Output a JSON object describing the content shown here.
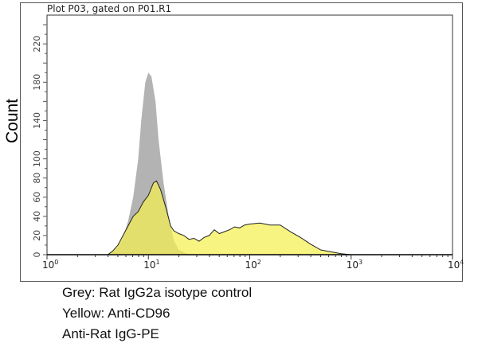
{
  "chart_data": {
    "type": "area",
    "title": "Plot P03, gated on P01.R1",
    "ylabel": "Count",
    "xlabel": "",
    "xscale": "log",
    "xlim_log10": [
      0,
      4
    ],
    "ylim": [
      0,
      250
    ],
    "xticks": [
      {
        "base": "10",
        "exp": "0",
        "v": 0
      },
      {
        "base": "10",
        "exp": "1",
        "v": 1
      },
      {
        "base": "10",
        "exp": "2",
        "v": 2
      },
      {
        "base": "10",
        "exp": "3",
        "v": 3
      },
      {
        "base": "10",
        "exp": "4",
        "v": 4
      }
    ],
    "yticks": [
      0,
      20,
      40,
      60,
      80,
      100,
      140,
      180,
      220
    ],
    "series": [
      {
        "name": "Rat IgG2a isotype control",
        "color": "#b3b3b3",
        "outline": false,
        "points_log10x": [
          [
            0.6,
            0
          ],
          [
            0.65,
            3
          ],
          [
            0.7,
            8
          ],
          [
            0.75,
            18
          ],
          [
            0.8,
            35
          ],
          [
            0.85,
            60
          ],
          [
            0.9,
            100
          ],
          [
            0.93,
            140
          ],
          [
            0.97,
            180
          ],
          [
            1.0,
            190
          ],
          [
            1.03,
            186
          ],
          [
            1.07,
            160
          ],
          [
            1.1,
            120
          ],
          [
            1.15,
            75
          ],
          [
            1.2,
            40
          ],
          [
            1.25,
            15
          ],
          [
            1.3,
            5
          ],
          [
            1.38,
            1
          ],
          [
            1.45,
            0
          ]
        ]
      },
      {
        "name": "Anti-CD96",
        "color": "#f5f050",
        "outline": true,
        "points_log10x": [
          [
            0.6,
            0
          ],
          [
            0.65,
            4
          ],
          [
            0.7,
            10
          ],
          [
            0.75,
            20
          ],
          [
            0.8,
            30
          ],
          [
            0.85,
            40
          ],
          [
            0.9,
            45
          ],
          [
            0.95,
            55
          ],
          [
            1.0,
            62
          ],
          [
            1.05,
            75
          ],
          [
            1.08,
            77
          ],
          [
            1.12,
            68
          ],
          [
            1.17,
            50
          ],
          [
            1.22,
            30
          ],
          [
            1.25,
            25
          ],
          [
            1.3,
            22
          ],
          [
            1.35,
            20
          ],
          [
            1.4,
            16
          ],
          [
            1.45,
            17
          ],
          [
            1.5,
            14
          ],
          [
            1.55,
            18
          ],
          [
            1.6,
            20
          ],
          [
            1.65,
            26
          ],
          [
            1.7,
            22
          ],
          [
            1.75,
            24
          ],
          [
            1.8,
            26
          ],
          [
            1.85,
            29
          ],
          [
            1.9,
            28
          ],
          [
            1.95,
            31
          ],
          [
            2.0,
            32
          ],
          [
            2.1,
            33
          ],
          [
            2.2,
            31
          ],
          [
            2.3,
            31
          ],
          [
            2.4,
            24
          ],
          [
            2.5,
            18
          ],
          [
            2.6,
            11
          ],
          [
            2.7,
            5
          ],
          [
            2.8,
            3
          ],
          [
            2.9,
            1
          ],
          [
            3.0,
            0
          ]
        ]
      }
    ]
  },
  "caption": [
    "Grey: Rat IgG2a isotype control",
    "Yellow: Anti-CD96",
    "Anti-Rat IgG-PE"
  ]
}
